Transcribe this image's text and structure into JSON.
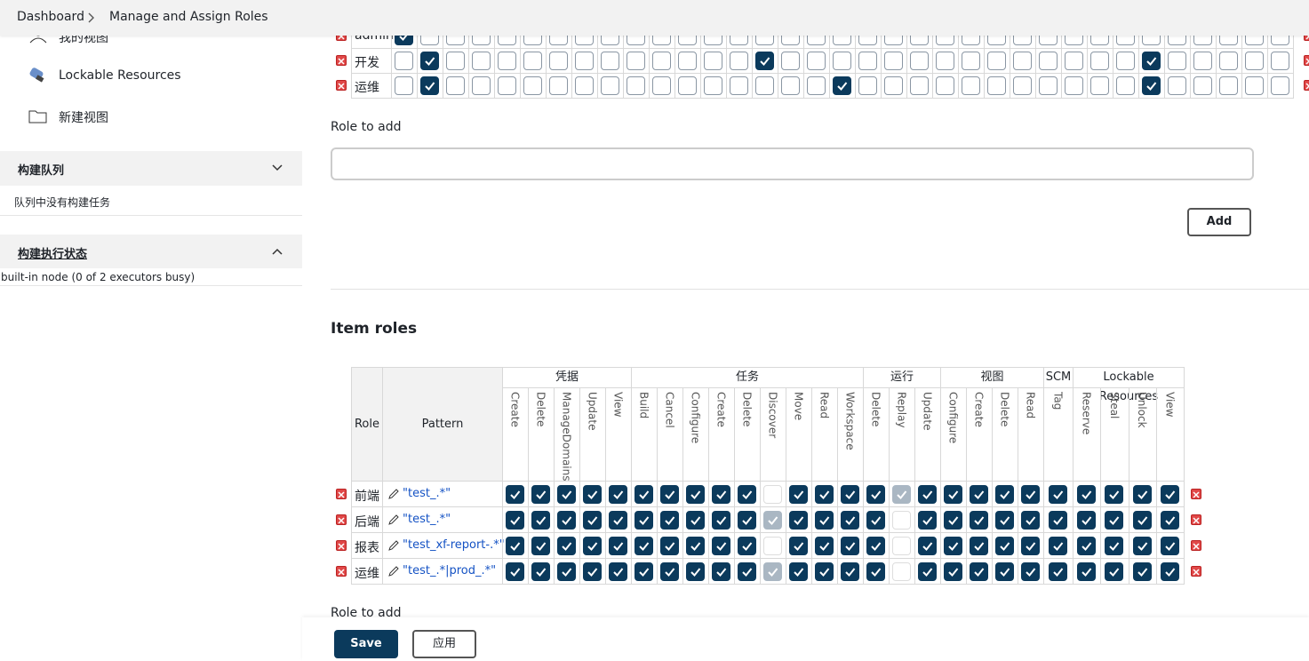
{
  "breadcrumb": [
    "Dashboard",
    "Manage and Assign Roles"
  ],
  "sidebar": {
    "links": [
      "我的视图",
      "Lockable Resources",
      "新建视图"
    ],
    "sections": [
      {
        "title": "构建队列",
        "content": "队列中没有构建任务"
      },
      {
        "title": "构建执行状态",
        "content": "built-in node (0 of 2 executors busy)"
      }
    ]
  },
  "global_roles": {
    "rows": [
      {
        "role": "admin",
        "checks": [
          1,
          0,
          0,
          0,
          0,
          0,
          0,
          0,
          0,
          0,
          0,
          0,
          0,
          0,
          0,
          0,
          0,
          0,
          0,
          0,
          0,
          0,
          0,
          0,
          0,
          0,
          0,
          0,
          0,
          0,
          0,
          0,
          0,
          0,
          0
        ]
      },
      {
        "role": "开发",
        "checks": [
          0,
          1,
          0,
          0,
          0,
          0,
          0,
          0,
          0,
          0,
          0,
          0,
          0,
          0,
          1,
          0,
          0,
          0,
          0,
          0,
          0,
          0,
          0,
          0,
          0,
          0,
          0,
          0,
          0,
          1,
          0,
          0,
          0,
          0,
          0
        ]
      },
      {
        "role": "运维",
        "checks": [
          0,
          1,
          0,
          0,
          0,
          0,
          0,
          0,
          0,
          0,
          0,
          0,
          0,
          0,
          0,
          0,
          0,
          1,
          0,
          0,
          0,
          0,
          0,
          0,
          0,
          0,
          0,
          0,
          0,
          1,
          0,
          0,
          0,
          0,
          0
        ]
      }
    ]
  },
  "role_to_add_label": "Role to add",
  "add_button": "Add",
  "item_roles": {
    "heading": "Item roles",
    "role_header": "Role",
    "pattern_header": "Pattern",
    "groups": [
      {
        "name": "凭据",
        "permissions": [
          "Create",
          "Delete",
          "ManageDomains",
          "Update",
          "View"
        ]
      },
      {
        "name": "任务",
        "permissions": [
          "Build",
          "Cancel",
          "Configure",
          "Create",
          "Delete",
          "Discover",
          "Move",
          "Read",
          "Workspace"
        ]
      },
      {
        "name": "运行",
        "permissions": [
          "Delete",
          "Replay",
          "Update"
        ]
      },
      {
        "name": "视图",
        "permissions": [
          "Configure",
          "Create",
          "Delete",
          "Read"
        ]
      },
      {
        "name": "SCM",
        "permissions": [
          "Tag"
        ]
      },
      {
        "name": "Lockable Resources",
        "permissions": [
          "Reserve",
          "Steal",
          "Unlock",
          "View"
        ]
      }
    ],
    "rows": [
      {
        "role": "前端",
        "pattern": "\"test_.*\"",
        "checks": [
          1,
          1,
          1,
          1,
          1,
          1,
          1,
          1,
          1,
          1,
          0,
          1,
          1,
          1,
          1,
          2,
          1,
          1,
          1,
          1,
          1,
          1,
          1,
          1,
          1,
          1
        ]
      },
      {
        "role": "后端",
        "pattern": "\"test_.*\"",
        "checks": [
          1,
          1,
          1,
          1,
          1,
          1,
          1,
          1,
          1,
          1,
          2,
          1,
          1,
          1,
          1,
          0,
          1,
          1,
          1,
          1,
          1,
          1,
          1,
          1,
          1,
          1
        ]
      },
      {
        "role": "报表",
        "pattern": "\"test_xf-report-.*\"",
        "checks": [
          1,
          1,
          1,
          1,
          1,
          1,
          1,
          1,
          1,
          1,
          0,
          1,
          1,
          1,
          1,
          0,
          1,
          1,
          1,
          1,
          1,
          1,
          1,
          1,
          1,
          1
        ]
      },
      {
        "role": "运维",
        "pattern": "\"test_.*|prod_.*\"",
        "checks": [
          1,
          1,
          1,
          1,
          1,
          1,
          1,
          1,
          1,
          1,
          2,
          1,
          1,
          1,
          1,
          0,
          1,
          1,
          1,
          1,
          1,
          1,
          1,
          1,
          1,
          1
        ]
      }
    ]
  },
  "bottom_label": "Role to add",
  "save_button": "Save",
  "apply_button": "应用"
}
